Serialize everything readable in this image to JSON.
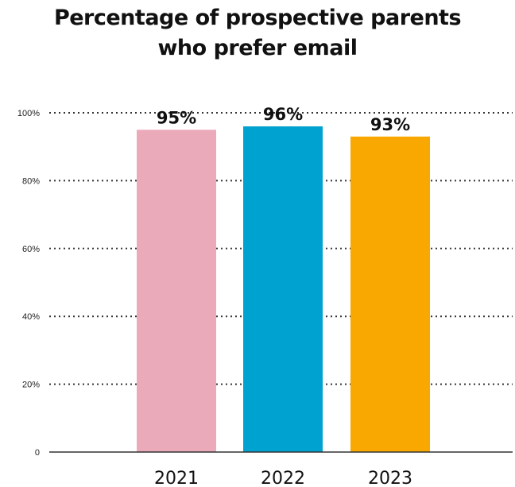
{
  "chart_data": {
    "type": "bar",
    "title_lines": [
      "Percentage of prospective parents",
      "who prefer email"
    ],
    "categories": [
      "2021",
      "2022",
      "2023"
    ],
    "values": [
      95,
      96,
      93
    ],
    "data_labels": [
      "95%",
      "96%",
      "93%"
    ],
    "colors": [
      "#ebaab9",
      "#00a2cf",
      "#f8a800"
    ],
    "yticks": [
      0,
      20,
      40,
      60,
      80,
      100
    ],
    "ytick_labels": [
      "0",
      "20%",
      "40%",
      "60%",
      "80%",
      "100%"
    ],
    "ylim": [
      0,
      100
    ],
    "grid": true,
    "grid_style": "dotted",
    "legend": "none"
  }
}
